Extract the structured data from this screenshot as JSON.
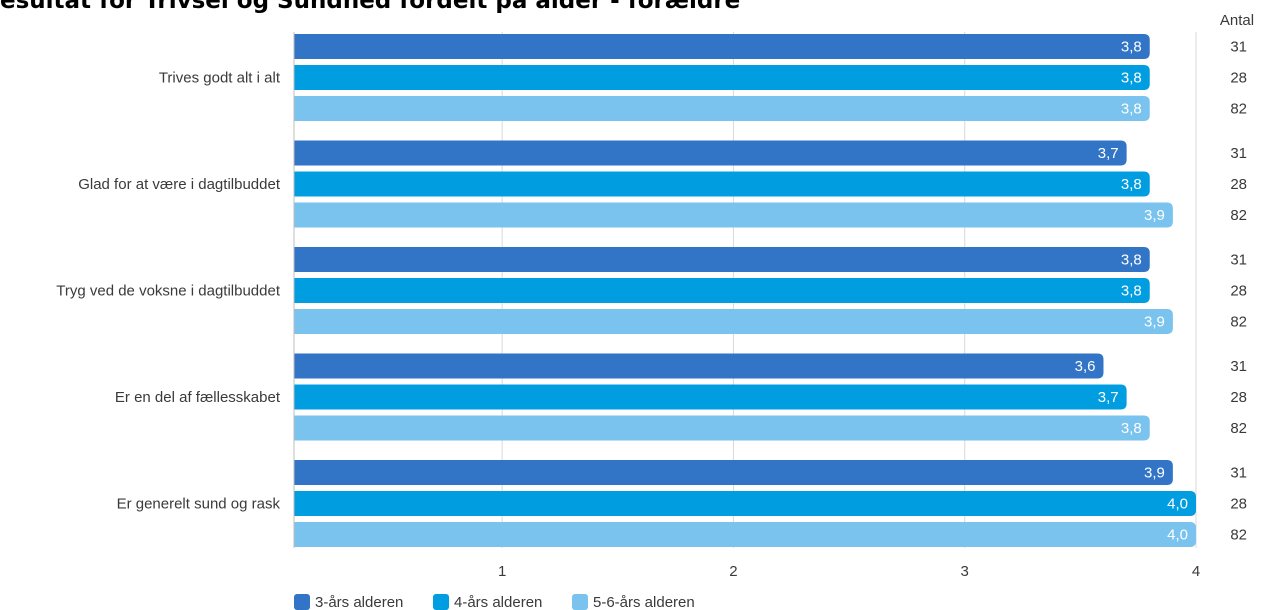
{
  "chart_data": {
    "type": "bar",
    "orientation": "horizontal",
    "title": "esultat for Trivsel og Sundhed fordelt på alder - forældre",
    "categories": [
      "Trives godt alt i alt",
      "Glad for at være i dagtilbuddet",
      "Tryg ved de voksne i dagtilbuddet",
      "Er en del af fællesskabet",
      "Er generelt sund og rask"
    ],
    "series": [
      {
        "name": "3-års alderen",
        "color": "#3274c6",
        "values": [
          3.8,
          3.7,
          3.8,
          3.6,
          3.9
        ],
        "labels": [
          "3,8",
          "3,7",
          "3,8",
          "3,6",
          "3,9"
        ],
        "counts": [
          "31",
          "31",
          "31",
          "31",
          "31"
        ]
      },
      {
        "name": "4-års alderen",
        "color": "#009de0",
        "values": [
          3.8,
          3.8,
          3.8,
          3.7,
          4.0
        ],
        "labels": [
          "3,8",
          "3,8",
          "3,8",
          "3,7",
          "4,0"
        ],
        "counts": [
          "28",
          "28",
          "28",
          "28",
          "28"
        ]
      },
      {
        "name": "5-6-års alderen",
        "color": "#79c3ee",
        "values": [
          3.8,
          3.9,
          3.9,
          3.8,
          4.0
        ],
        "labels": [
          "3,8",
          "3,9",
          "3,9",
          "3,8",
          "4,0"
        ],
        "counts": [
          "82",
          "82",
          "82",
          "82",
          "82"
        ]
      }
    ],
    "xlim": [
      0.1,
      4
    ],
    "xticks": [
      1,
      2,
      3,
      4
    ],
    "xtick_labels": [
      "1",
      "2",
      "3",
      "4"
    ],
    "count_header": "Antal",
    "grid": true,
    "legend_position": "bottom-left"
  }
}
